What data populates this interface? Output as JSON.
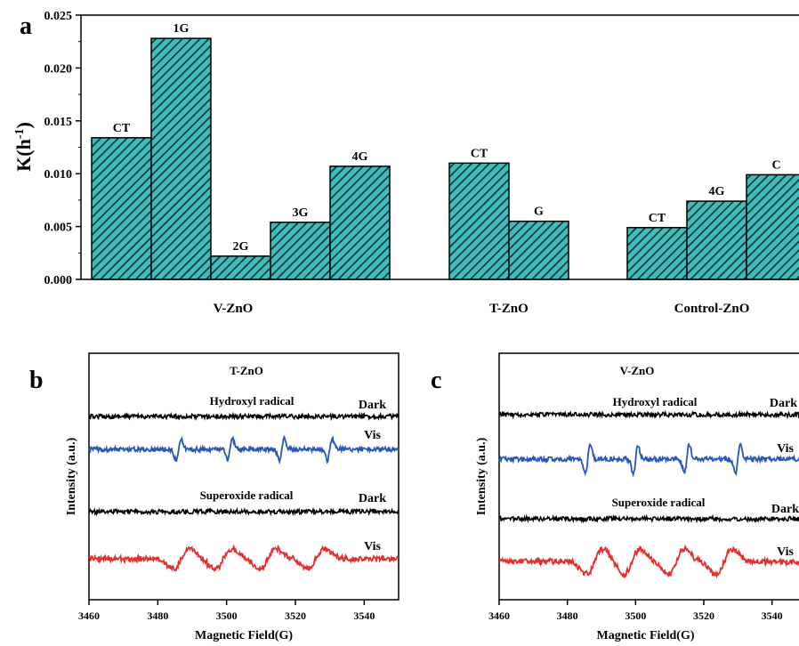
{
  "chart_data": [
    {
      "panel": "a",
      "type": "bar",
      "ylabel": "K(h",
      "ylabel_sup": "-1",
      "ylabel_end": ")",
      "ylim": [
        0,
        0.025
      ],
      "yticks": [
        "0.000",
        "0.005",
        "0.010",
        "0.015",
        "0.020",
        "0.025"
      ],
      "bar_color": "#3fbcbc",
      "hatch": "diagonal",
      "groups": [
        {
          "name": "V-ZnO",
          "bars": [
            {
              "label": "CT",
              "value": 0.0134
            },
            {
              "label": "1G",
              "value": 0.0228
            },
            {
              "label": "2G",
              "value": 0.0022
            },
            {
              "label": "3G",
              "value": 0.0054
            },
            {
              "label": "4G",
              "value": 0.0107
            }
          ]
        },
        {
          "name": "T-ZnO",
          "bars": [
            {
              "label": "CT",
              "value": 0.011
            },
            {
              "label": "G",
              "value": 0.0055
            }
          ]
        },
        {
          "name": "Control-ZnO",
          "bars": [
            {
              "label": "CT",
              "value": 0.0049
            },
            {
              "label": "4G",
              "value": 0.0074
            },
            {
              "label": "C",
              "value": 0.0099
            }
          ]
        }
      ]
    },
    {
      "panel": "b",
      "type": "line",
      "title": "T-ZnO",
      "xlabel": "Magnetic Field(G)",
      "ylabel": "Intensity (a.u.)",
      "xlim": [
        3460,
        3550
      ],
      "xticks": [
        "3460",
        "3480",
        "3500",
        "3520",
        "3540"
      ],
      "series": [
        {
          "name": "Dark",
          "color": "#000000",
          "signal": "none"
        },
        {
          "name": "Vis",
          "color": "#2a57b7",
          "signal": "hydroxyl",
          "peaks": [
            3486,
            3501,
            3516,
            3530
          ]
        },
        {
          "name": "Dark",
          "color": "#000000",
          "signal": "none"
        },
        {
          "name": "Vis",
          "color": "#e03030",
          "signal": "superoxide",
          "peaks": [
            3487,
            3499,
            3512,
            3526
          ]
        }
      ],
      "annotations": [
        "Hydroxyl radical",
        "Superoxide radical"
      ]
    },
    {
      "panel": "c",
      "type": "line",
      "title": "V-ZnO",
      "xlabel": "Magnetic Field(G)",
      "ylabel": "Intensity (a.u.)",
      "xlim": [
        3460,
        3550
      ],
      "xticks": [
        "3460",
        "3480",
        "3500",
        "3520",
        "3540"
      ],
      "series": [
        {
          "name": "Dark",
          "color": "#000000",
          "signal": "none"
        },
        {
          "name": "Vis",
          "color": "#2a57b7",
          "signal": "hydroxyl",
          "peaks": [
            3486,
            3500,
            3515,
            3530
          ]
        },
        {
          "name": "Dark",
          "color": "#000000",
          "signal": "none"
        },
        {
          "name": "Vis",
          "color": "#e03030",
          "signal": "superoxide",
          "peaks": [
            3488,
            3499,
            3512,
            3526
          ]
        }
      ],
      "annotations": [
        "Hydroxyl radical",
        "Superoxide radical"
      ]
    }
  ]
}
